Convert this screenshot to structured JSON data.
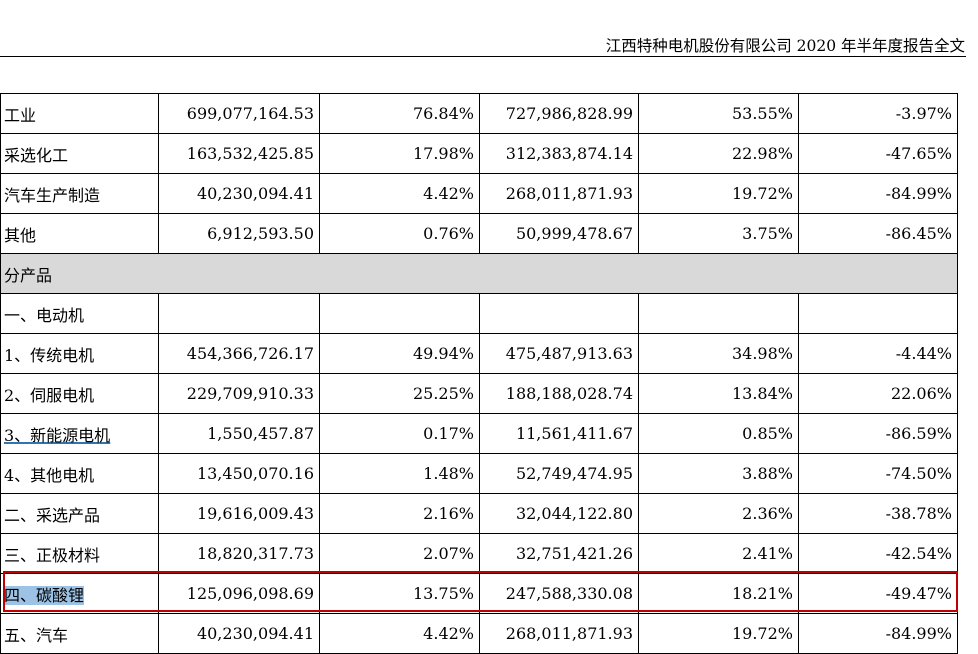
{
  "header": {
    "title": "江西特种电机股份有限公司 2020 年半年度报告全文"
  },
  "table": {
    "rows": [
      {
        "label": "工业",
        "cells": [
          "699,077,164.53",
          "76.84%",
          "727,986,828.99",
          "53.55%",
          "-3.97%"
        ]
      },
      {
        "label": "采选化工",
        "cells": [
          "163,532,425.85",
          "17.98%",
          "312,383,874.14",
          "22.98%",
          "-47.65%"
        ]
      },
      {
        "label": "汽车生产制造",
        "cells": [
          "40,230,094.41",
          "4.42%",
          "268,011,871.93",
          "19.72%",
          "-84.99%"
        ]
      },
      {
        "label": "其他",
        "cells": [
          "6,912,593.50",
          "0.76%",
          "50,999,478.67",
          "3.75%",
          "-86.45%"
        ]
      },
      {
        "label": "分产品",
        "section": true
      },
      {
        "label": "一、电动机",
        "cells": [
          "",
          "",
          "",
          "",
          ""
        ]
      },
      {
        "label": "1、传统电机",
        "cells": [
          "454,366,726.17",
          "49.94%",
          "475,487,913.63",
          "34.98%",
          "-4.44%"
        ]
      },
      {
        "label": "2、伺服电机",
        "cells": [
          "229,709,910.33",
          "25.25%",
          "188,188,028.74",
          "13.84%",
          "22.06%"
        ]
      },
      {
        "label": "3、新能源电机",
        "cells": [
          "1,550,457.87",
          "0.17%",
          "11,561,411.67",
          "0.85%",
          "-86.59%"
        ]
      },
      {
        "label": "4、其他电机",
        "cells": [
          "13,450,070.16",
          "1.48%",
          "52,749,474.95",
          "3.88%",
          "-74.50%"
        ]
      },
      {
        "label": "二、采选产品",
        "cells": [
          "19,616,009.43",
          "2.16%",
          "32,044,122.80",
          "2.36%",
          "-38.78%"
        ]
      },
      {
        "label": "三、正极材料",
        "cells": [
          "18,820,317.73",
          "2.07%",
          "32,751,421.26",
          "2.41%",
          "-42.54%"
        ]
      },
      {
        "label": "四、碳酸锂",
        "cells": [
          "125,096,098.69",
          "13.75%",
          "247,588,330.08",
          "18.21%",
          "-49.47%"
        ],
        "highlighted": true
      },
      {
        "label": "五、汽车",
        "cells": [
          "40,230,094.41",
          "4.42%",
          "268,011,871.93",
          "19.72%",
          "-84.99%"
        ]
      }
    ]
  }
}
